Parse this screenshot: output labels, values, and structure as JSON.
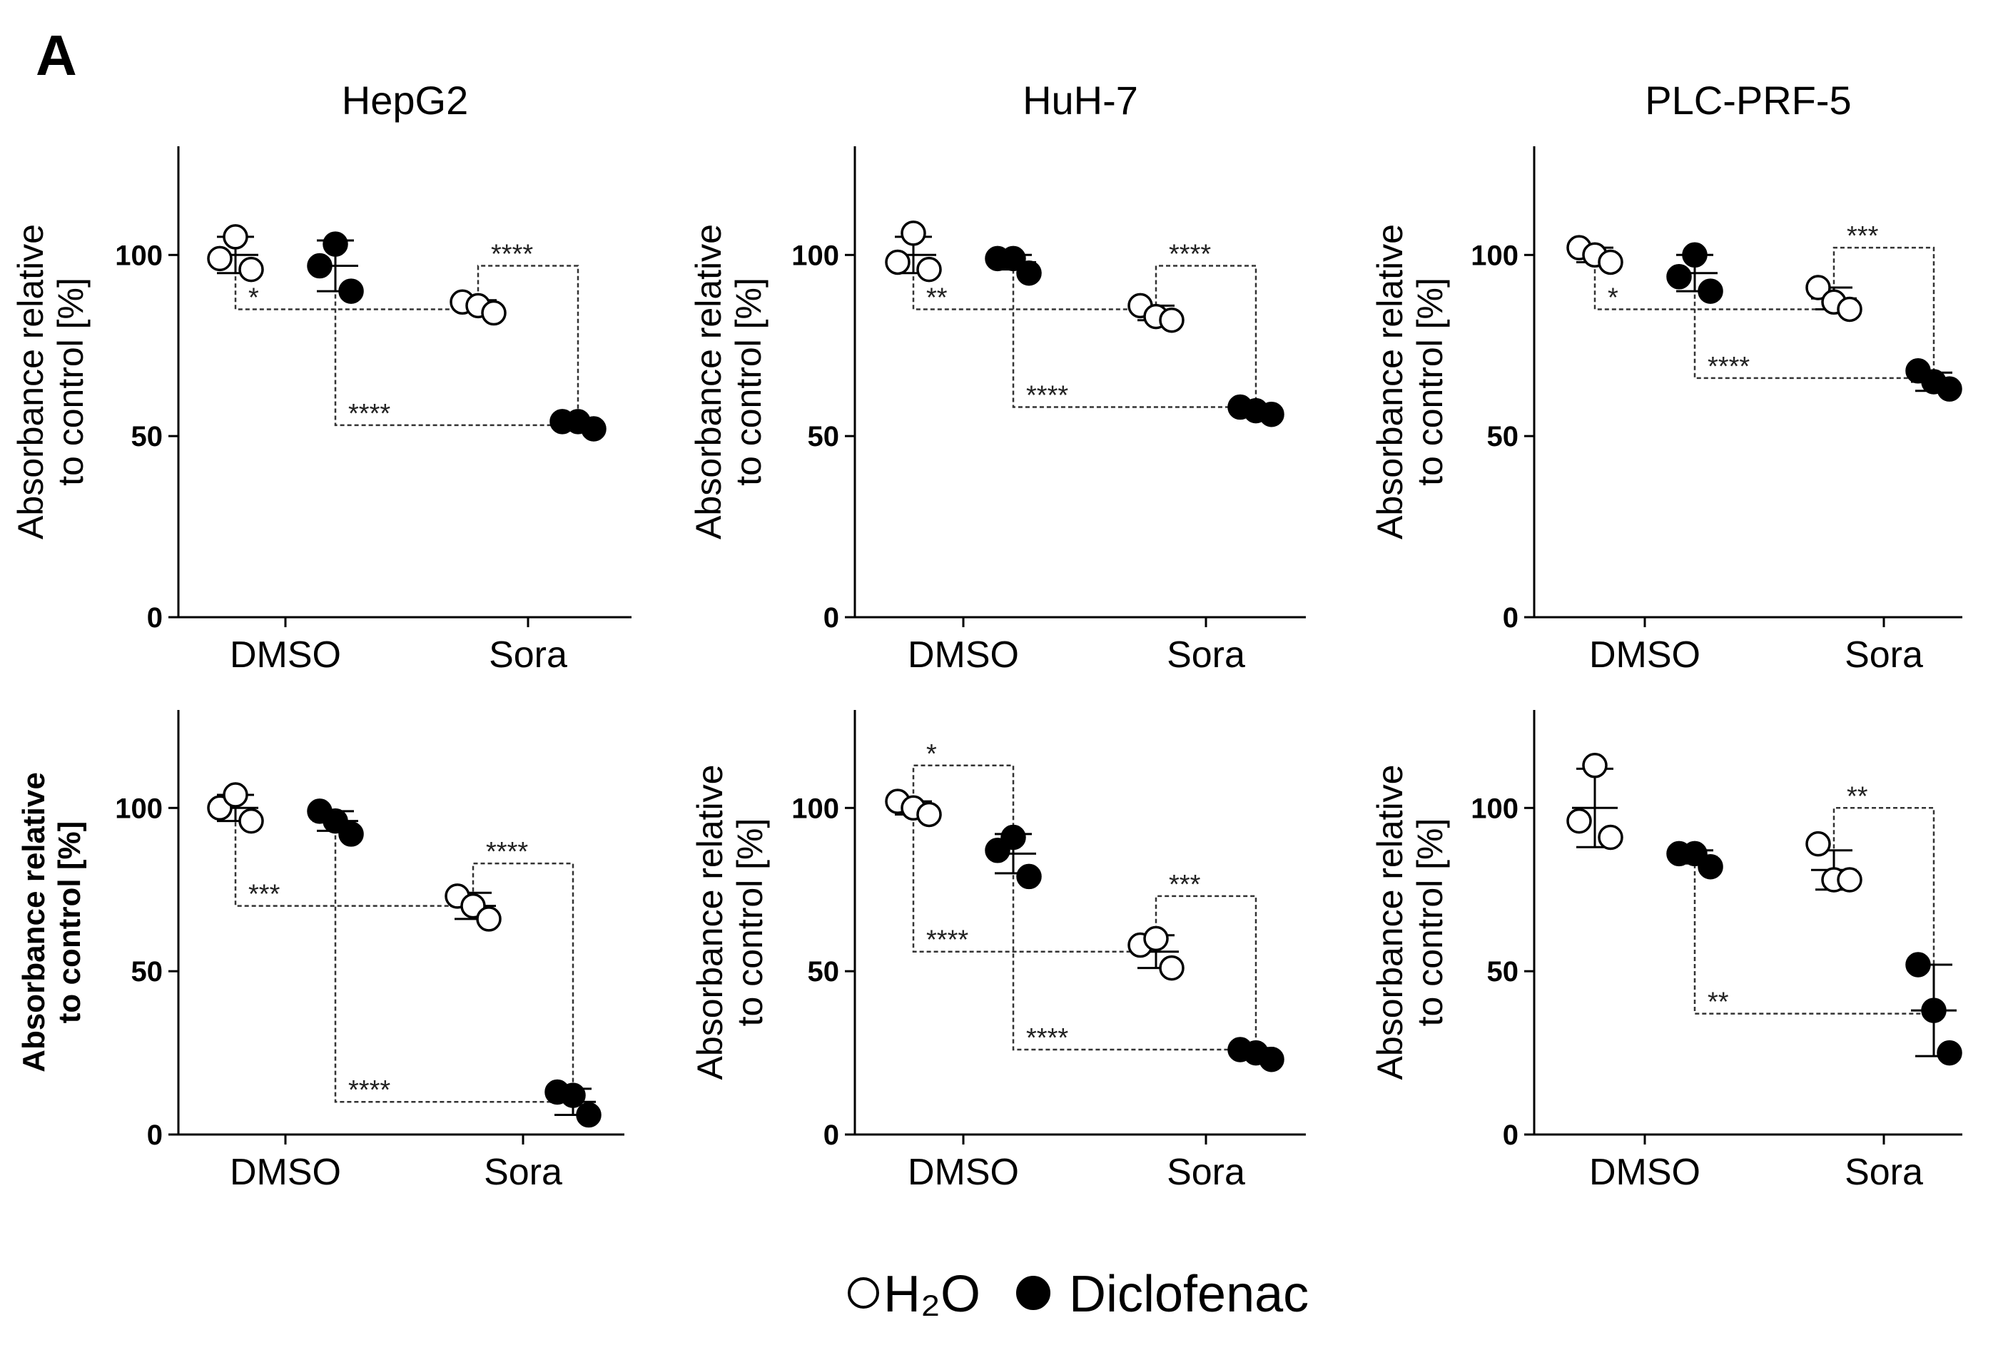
{
  "figure": {
    "panel_letter": "A",
    "legend": {
      "items": [
        {
          "label": "H₂O",
          "marker": "open-circle"
        },
        {
          "label": "Diclofenac",
          "marker": "filled-circle"
        }
      ]
    },
    "colors": {
      "ink": "#000000",
      "open_fill": "#ffffff",
      "bracket": "#333333"
    }
  },
  "chart_data": [
    {
      "type": "scatter",
      "title": "HepG2",
      "ylabel": "Absorbance relative to control [%]",
      "categories": [
        "DMSO",
        "Sora"
      ],
      "ylim": [
        0,
        130
      ],
      "yticks": [
        "0",
        "50",
        "100"
      ],
      "groups": [
        {
          "category": "DMSO",
          "series": "H2O",
          "points": [
            99,
            105,
            96
          ],
          "mean": 100,
          "sd": 5
        },
        {
          "category": "DMSO",
          "series": "Diclofenac",
          "points": [
            97,
            103,
            90
          ],
          "mean": 97,
          "sd": 7
        },
        {
          "category": "Sora",
          "series": "H2O",
          "points": [
            87,
            86,
            84
          ],
          "mean": 86,
          "sd": 1.5
        },
        {
          "category": "Sora",
          "series": "Diclofenac",
          "points": [
            54,
            54,
            52
          ],
          "mean": 53,
          "sd": 1
        }
      ],
      "annotations": [
        {
          "label": "*",
          "from": "DMSO-H2O",
          "to": "Sora-H2O",
          "y": 85
        },
        {
          "label": "****",
          "from": "DMSO-Diclofenac",
          "to": "Sora-Diclofenac",
          "y": 53
        },
        {
          "label": "****",
          "from": "Sora-H2O",
          "to": "Sora-Diclofenac",
          "y": 97
        }
      ]
    },
    {
      "type": "scatter",
      "title": "HuH-7",
      "ylabel": "Absorbance relative to control [%]",
      "categories": [
        "DMSO",
        "Sora"
      ],
      "ylim": [
        0,
        130
      ],
      "yticks": [
        "0",
        "50",
        "100"
      ],
      "groups": [
        {
          "category": "DMSO",
          "series": "H2O",
          "points": [
            98,
            106,
            96
          ],
          "mean": 100,
          "sd": 5
        },
        {
          "category": "DMSO",
          "series": "Diclofenac",
          "points": [
            99,
            99,
            95
          ],
          "mean": 98,
          "sd": 2
        },
        {
          "category": "Sora",
          "series": "H2O",
          "points": [
            86,
            83,
            82
          ],
          "mean": 84,
          "sd": 2
        },
        {
          "category": "Sora",
          "series": "Diclofenac",
          "points": [
            58,
            57,
            56
          ],
          "mean": 57,
          "sd": 1
        }
      ],
      "annotations": [
        {
          "label": "**",
          "from": "DMSO-H2O",
          "to": "Sora-H2O",
          "y": 85
        },
        {
          "label": "****",
          "from": "DMSO-Diclofenac",
          "to": "Sora-Diclofenac",
          "y": 58
        },
        {
          "label": "****",
          "from": "Sora-H2O",
          "to": "Sora-Diclofenac",
          "y": 97
        }
      ]
    },
    {
      "type": "scatter",
      "title": "PLC-PRF-5",
      "ylabel": "Absorbance relative to control [%]",
      "categories": [
        "DMSO",
        "Sora"
      ],
      "ylim": [
        0,
        130
      ],
      "yticks": [
        "0",
        "50",
        "100"
      ],
      "groups": [
        {
          "category": "DMSO",
          "series": "H2O",
          "points": [
            102,
            100,
            98
          ],
          "mean": 100,
          "sd": 2
        },
        {
          "category": "DMSO",
          "series": "Diclofenac",
          "points": [
            94,
            100,
            90
          ],
          "mean": 95,
          "sd": 5
        },
        {
          "category": "Sora",
          "series": "H2O",
          "points": [
            91,
            87,
            85
          ],
          "mean": 88,
          "sd": 3
        },
        {
          "category": "Sora",
          "series": "Diclofenac",
          "points": [
            68,
            65,
            63
          ],
          "mean": 65,
          "sd": 2.5
        }
      ],
      "annotations": [
        {
          "label": "*",
          "from": "DMSO-H2O",
          "to": "Sora-H2O",
          "y": 85
        },
        {
          "label": "****",
          "from": "DMSO-Diclofenac",
          "to": "Sora-Diclofenac",
          "y": 66
        },
        {
          "label": "***",
          "from": "Sora-H2O",
          "to": "Sora-Diclofenac",
          "y": 102
        }
      ]
    },
    {
      "type": "scatter",
      "title": "",
      "ylabel": "Absorbance relative to control [%]",
      "categories": [
        "DMSO",
        "Sora"
      ],
      "ylim": [
        0,
        130
      ],
      "yticks": [
        "0",
        "50",
        "100"
      ],
      "groups": [
        {
          "category": "DMSO",
          "series": "H2O",
          "points": [
            100,
            104,
            96
          ],
          "mean": 100,
          "sd": 4
        },
        {
          "category": "DMSO",
          "series": "Diclofenac",
          "points": [
            99,
            96,
            92
          ],
          "mean": 96,
          "sd": 3
        },
        {
          "category": "Sora",
          "series": "H2O",
          "points": [
            73,
            70,
            66
          ],
          "mean": 70,
          "sd": 4
        },
        {
          "category": "Sora",
          "series": "Diclofenac",
          "points": [
            13,
            12,
            6
          ],
          "mean": 10,
          "sd": 4
        }
      ],
      "annotations": [
        {
          "label": "***",
          "from": "DMSO-H2O",
          "to": "Sora-H2O",
          "y": 70
        },
        {
          "label": "****",
          "from": "DMSO-Diclofenac",
          "to": "Sora-Diclofenac",
          "y": 10
        },
        {
          "label": "****",
          "from": "Sora-H2O",
          "to": "Sora-Diclofenac",
          "y": 83
        }
      ]
    },
    {
      "type": "scatter",
      "title": "",
      "ylabel": "Absorbance relative to control [%]",
      "categories": [
        "DMSO",
        "Sora"
      ],
      "ylim": [
        0,
        130
      ],
      "yticks": [
        "0",
        "50",
        "100"
      ],
      "groups": [
        {
          "category": "DMSO",
          "series": "H2O",
          "points": [
            102,
            100,
            98
          ],
          "mean": 100,
          "sd": 2
        },
        {
          "category": "DMSO",
          "series": "Diclofenac",
          "points": [
            87,
            91,
            79
          ],
          "mean": 86,
          "sd": 6
        },
        {
          "category": "Sora",
          "series": "H2O",
          "points": [
            58,
            60,
            51
          ],
          "mean": 56,
          "sd": 5
        },
        {
          "category": "Sora",
          "series": "Diclofenac",
          "points": [
            26,
            25,
            23
          ],
          "mean": 25,
          "sd": 1.5
        }
      ],
      "annotations": [
        {
          "label": "*",
          "from": "DMSO-H2O",
          "to": "DMSO-Diclofenac",
          "y": 113
        },
        {
          "label": "****",
          "from": "DMSO-H2O",
          "to": "Sora-H2O",
          "y": 56
        },
        {
          "label": "****",
          "from": "DMSO-Diclofenac",
          "to": "Sora-Diclofenac",
          "y": 26
        },
        {
          "label": "***",
          "from": "Sora-H2O",
          "to": "Sora-Diclofenac",
          "y": 73
        }
      ]
    },
    {
      "type": "scatter",
      "title": "",
      "ylabel": "Absorbance relative to control [%]",
      "categories": [
        "DMSO",
        "Sora"
      ],
      "ylim": [
        0,
        130
      ],
      "yticks": [
        "0",
        "50",
        "100"
      ],
      "groups": [
        {
          "category": "DMSO",
          "series": "H2O",
          "points": [
            96,
            113,
            91
          ],
          "mean": 100,
          "sd": 12
        },
        {
          "category": "DMSO",
          "series": "Diclofenac",
          "points": [
            86,
            86,
            82
          ],
          "mean": 85,
          "sd": 2
        },
        {
          "category": "Sora",
          "series": "H2O",
          "points": [
            89,
            78,
            78
          ],
          "mean": 81,
          "sd": 6
        },
        {
          "category": "Sora",
          "series": "Diclofenac",
          "points": [
            52,
            38,
            25
          ],
          "mean": 38,
          "sd": 14
        }
      ],
      "annotations": [
        {
          "label": "**",
          "from": "DMSO-Diclofenac",
          "to": "Sora-Diclofenac",
          "y": 37
        },
        {
          "label": "**",
          "from": "Sora-H2O",
          "to": "Sora-Diclofenac",
          "y": 100
        }
      ]
    }
  ]
}
